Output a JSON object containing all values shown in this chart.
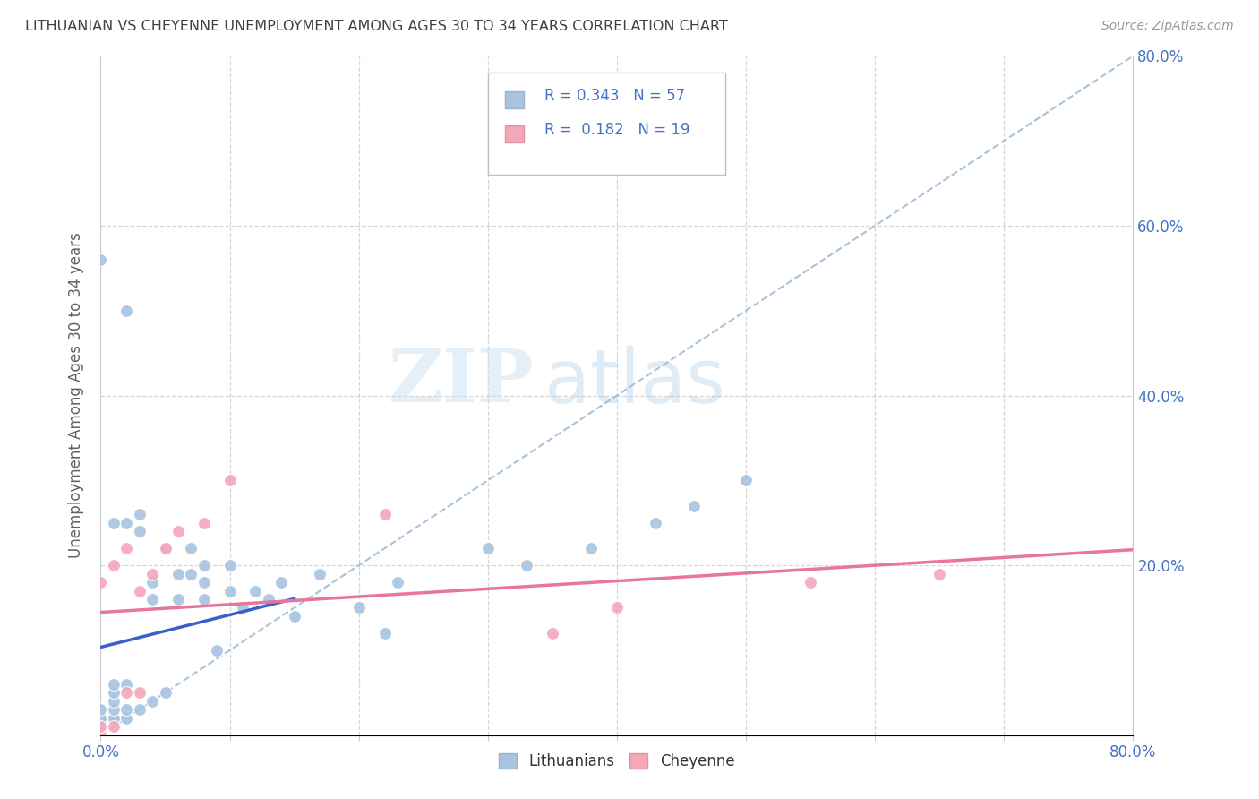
{
  "title": "LITHUANIAN VS CHEYENNE UNEMPLOYMENT AMONG AGES 30 TO 34 YEARS CORRELATION CHART",
  "source": "Source: ZipAtlas.com",
  "ylabel": "Unemployment Among Ages 30 to 34 years",
  "xlim": [
    0.0,
    0.8
  ],
  "ylim": [
    0.0,
    0.8
  ],
  "lithuanian_color": "#a8c4e0",
  "cheyenne_color": "#f4a7b9",
  "regression_line_lithuanian_color": "#3a5fcd",
  "regression_line_cheyenne_color": "#e8759a",
  "diagonal_color": "#a0bcd8",
  "R_lithuanian": 0.343,
  "N_lithuanian": 57,
  "R_cheyenne": 0.182,
  "N_cheyenne": 19,
  "legend_label_1": "Lithuanians",
  "legend_label_2": "Cheyenne",
  "watermark_zip": "ZIP",
  "watermark_atlas": "atlas",
  "background_color": "#ffffff",
  "grid_color": "#cccccc",
  "title_color": "#404040",
  "axis_label_color": "#606060",
  "tick_label_color": "#4472c4",
  "legend_R_color": "#4472c4",
  "lithuanian_x": [
    0.0,
    0.0,
    0.0,
    0.0,
    0.0,
    0.0,
    0.0,
    0.0,
    0.0,
    0.0,
    0.0,
    0.0,
    0.01,
    0.01,
    0.01,
    0.01,
    0.01,
    0.01,
    0.01,
    0.02,
    0.02,
    0.02,
    0.02,
    0.02,
    0.03,
    0.03,
    0.03,
    0.04,
    0.04,
    0.04,
    0.05,
    0.05,
    0.06,
    0.06,
    0.07,
    0.07,
    0.08,
    0.08,
    0.08,
    0.09,
    0.1,
    0.1,
    0.11,
    0.12,
    0.13,
    0.14,
    0.15,
    0.17,
    0.2,
    0.22,
    0.23,
    0.3,
    0.33,
    0.38,
    0.43,
    0.46,
    0.5
  ],
  "lithuanian_y": [
    0.0,
    0.0,
    0.0,
    0.0,
    0.01,
    0.01,
    0.01,
    0.02,
    0.02,
    0.02,
    0.03,
    0.56,
    0.02,
    0.02,
    0.03,
    0.04,
    0.05,
    0.06,
    0.25,
    0.02,
    0.03,
    0.06,
    0.25,
    0.5,
    0.03,
    0.24,
    0.26,
    0.04,
    0.16,
    0.18,
    0.05,
    0.22,
    0.16,
    0.19,
    0.19,
    0.22,
    0.16,
    0.18,
    0.2,
    0.1,
    0.17,
    0.2,
    0.15,
    0.17,
    0.16,
    0.18,
    0.14,
    0.19,
    0.15,
    0.12,
    0.18,
    0.22,
    0.2,
    0.22,
    0.25,
    0.27,
    0.3
  ],
  "cheyenne_x": [
    0.0,
    0.0,
    0.0,
    0.01,
    0.01,
    0.02,
    0.02,
    0.03,
    0.03,
    0.04,
    0.05,
    0.06,
    0.08,
    0.1,
    0.22,
    0.35,
    0.4,
    0.55,
    0.65
  ],
  "cheyenne_y": [
    0.0,
    0.01,
    0.18,
    0.01,
    0.2,
    0.05,
    0.22,
    0.05,
    0.17,
    0.19,
    0.22,
    0.24,
    0.25,
    0.3,
    0.26,
    0.12,
    0.15,
    0.18,
    0.19
  ]
}
